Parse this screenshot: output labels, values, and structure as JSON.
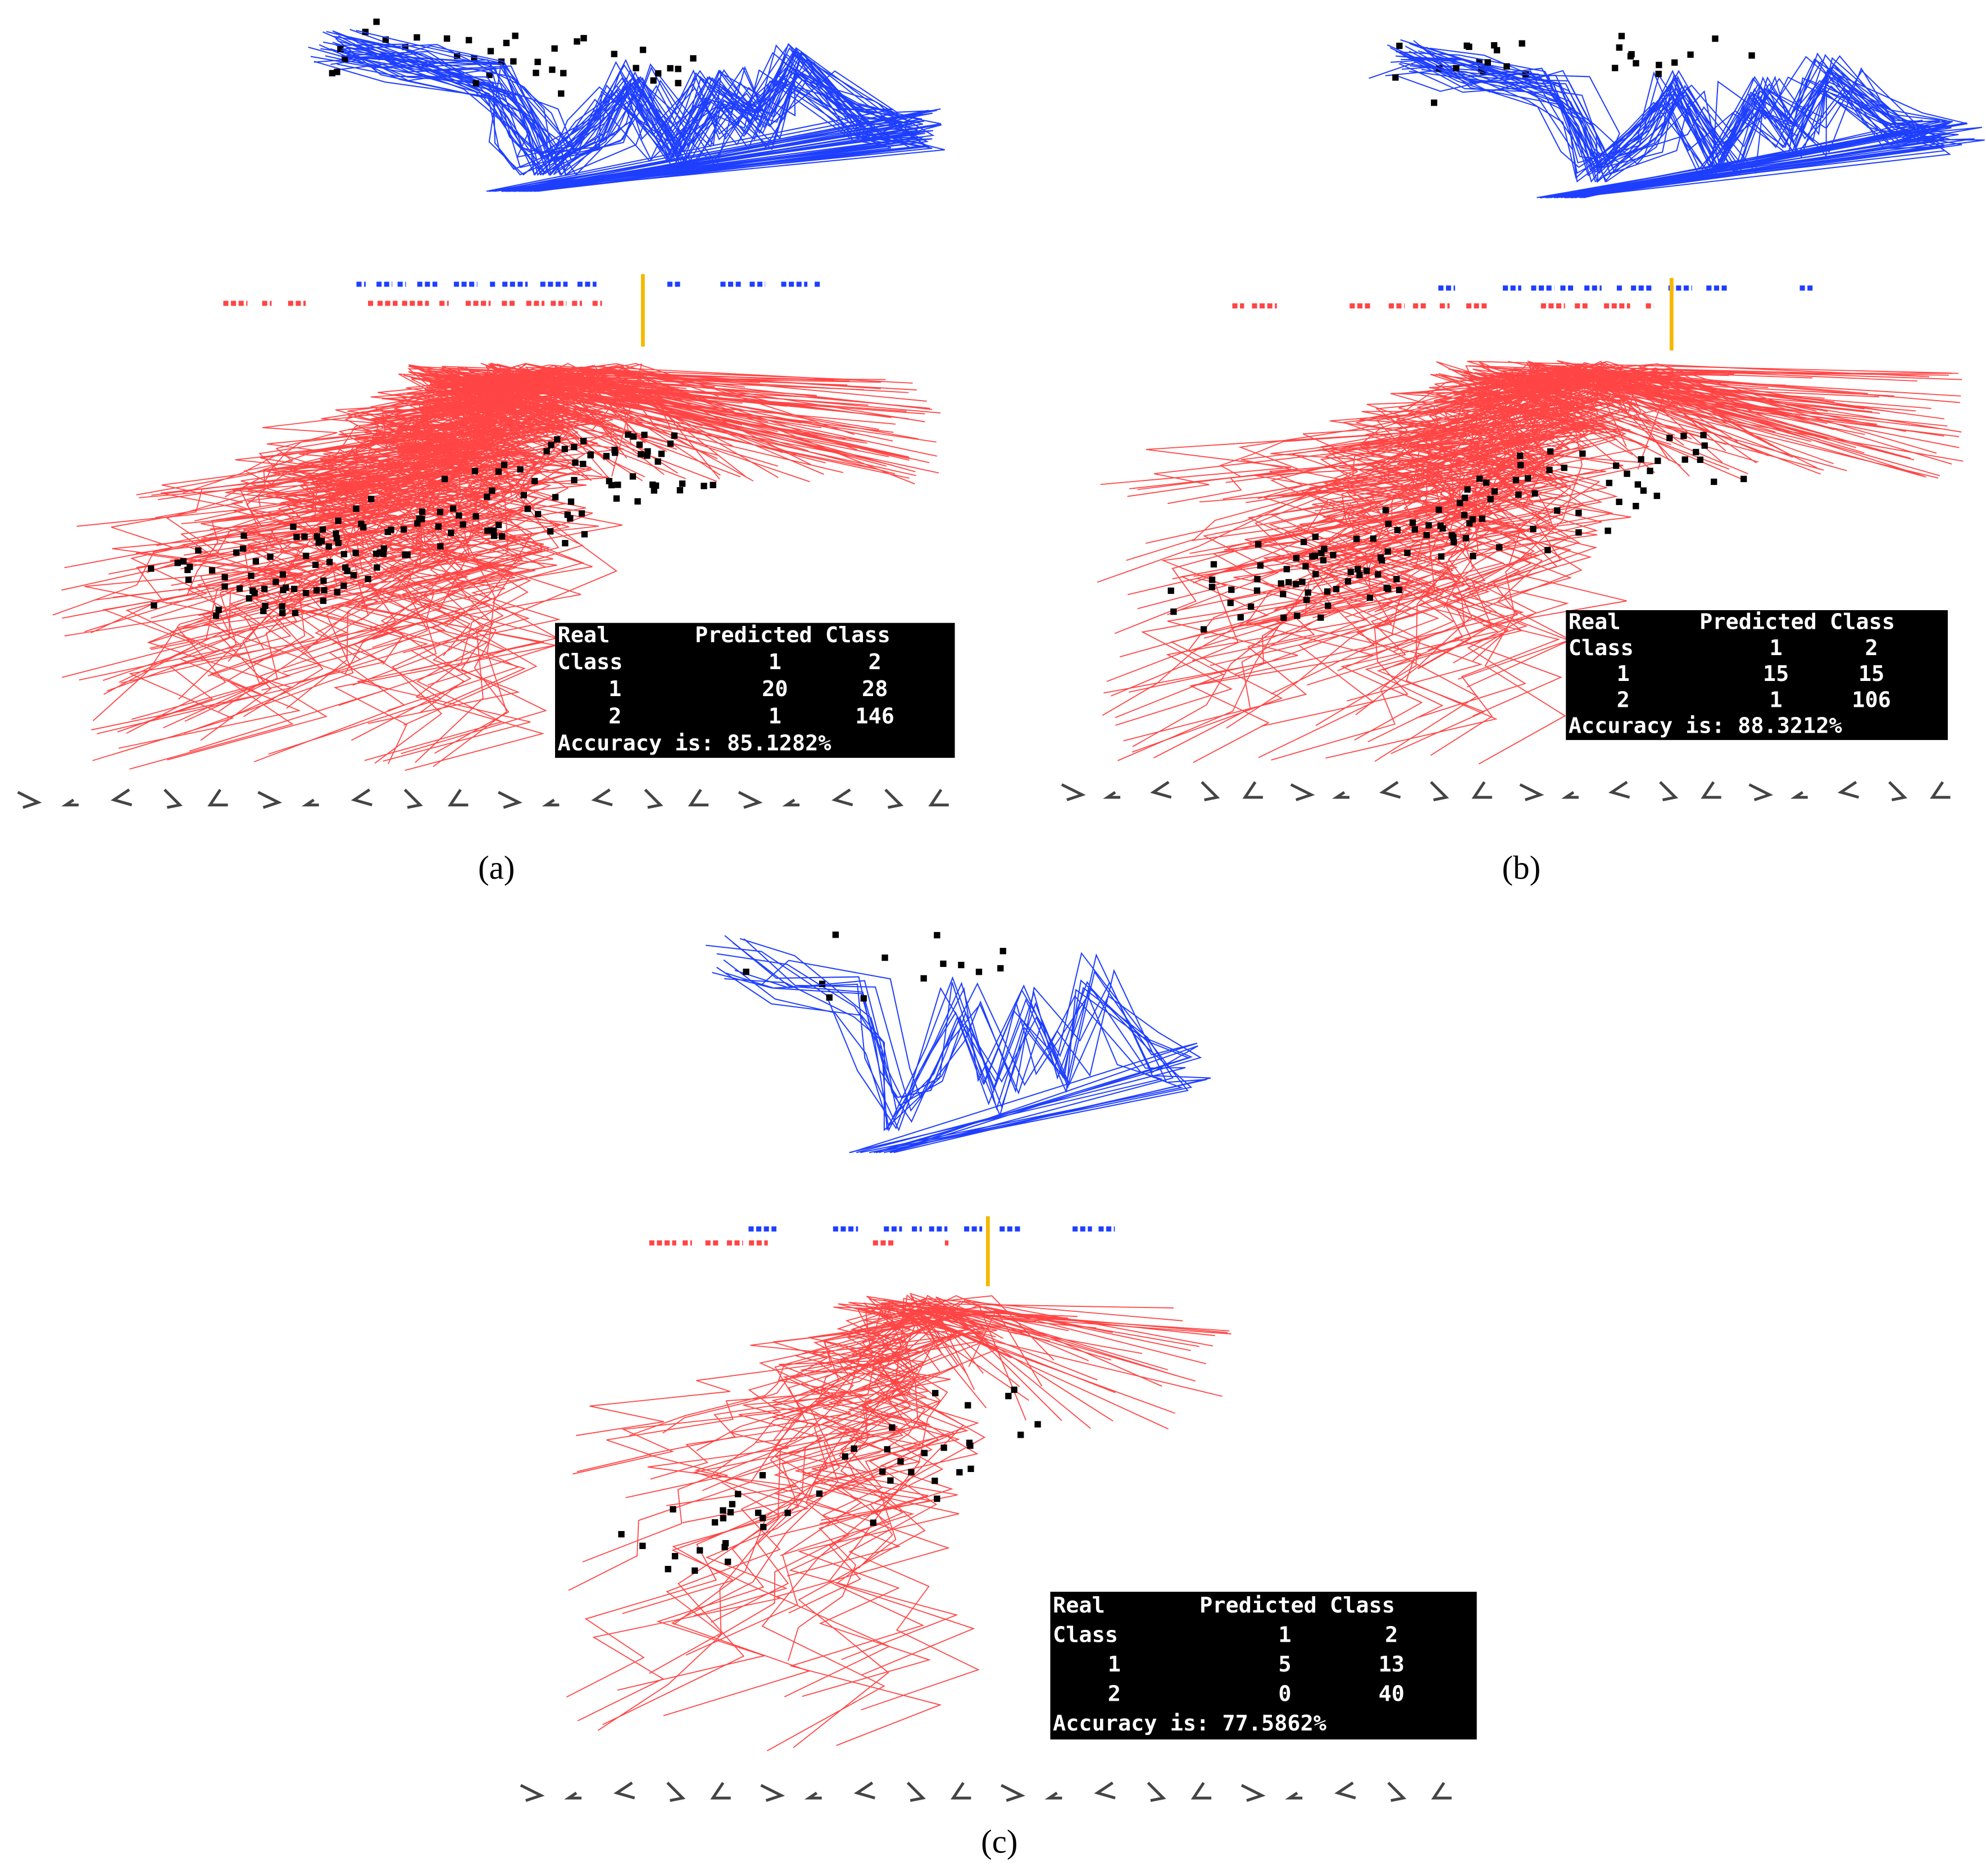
{
  "panels": [
    {
      "label": "(a)",
      "table": {
        "rows": [
          [
            "Real",
            "Predicted Class"
          ],
          [
            "Class",
            "1",
            "2"
          ],
          [
            "1",
            "20",
            "28"
          ],
          [
            "2",
            "1",
            "146"
          ],
          [
            "Accuracy is: 85.1282%"
          ]
        ]
      }
    },
    {
      "label": "(b)",
      "table": {
        "rows": [
          [
            "Real",
            "Predicted Class"
          ],
          [
            "Class",
            "1",
            "2"
          ],
          [
            "1",
            "15",
            "15"
          ],
          [
            "2",
            "1",
            "106"
          ],
          [
            "Accuracy is: 88.3212%"
          ]
        ]
      }
    },
    {
      "label": "(c)",
      "table": {
        "rows": [
          [
            "Real",
            "Predicted Class"
          ],
          [
            "Class",
            "1",
            "2"
          ],
          [
            "1",
            "5",
            "13"
          ],
          [
            "2",
            "0",
            "40"
          ],
          [
            "Accuracy is: 77.5862%"
          ]
        ]
      }
    }
  ]
}
